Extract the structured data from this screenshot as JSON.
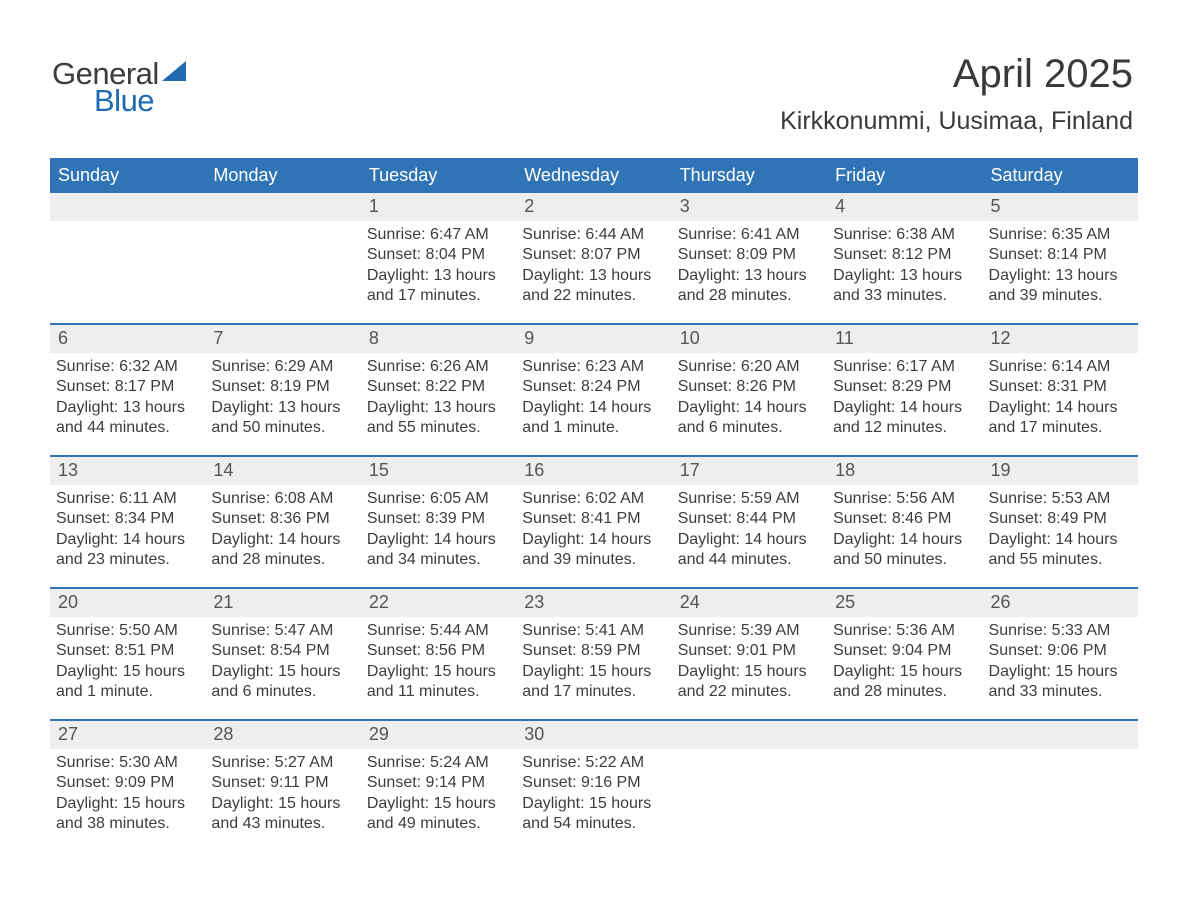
{
  "logo": {
    "word1": "General",
    "word2": "Blue"
  },
  "title": {
    "month": "April 2025",
    "location": "Kirkkonummi, Uusimaa, Finland"
  },
  "colors": {
    "header_bg": "#2f74b5",
    "header_text": "#ffffff",
    "daynum_bg": "#eeeeee",
    "week_border": "#2f74b5",
    "logo_blue": "#1f6ab0",
    "body_text": "#3a3a3a"
  },
  "weekday_labels": [
    "Sunday",
    "Monday",
    "Tuesday",
    "Wednesday",
    "Thursday",
    "Friday",
    "Saturday"
  ],
  "weeks": [
    [
      {
        "num": "",
        "sunrise": "",
        "sunset": "",
        "daylight1": "",
        "daylight2": ""
      },
      {
        "num": "",
        "sunrise": "",
        "sunset": "",
        "daylight1": "",
        "daylight2": ""
      },
      {
        "num": "1",
        "sunrise": "Sunrise: 6:47 AM",
        "sunset": "Sunset: 8:04 PM",
        "daylight1": "Daylight: 13 hours",
        "daylight2": "and 17 minutes."
      },
      {
        "num": "2",
        "sunrise": "Sunrise: 6:44 AM",
        "sunset": "Sunset: 8:07 PM",
        "daylight1": "Daylight: 13 hours",
        "daylight2": "and 22 minutes."
      },
      {
        "num": "3",
        "sunrise": "Sunrise: 6:41 AM",
        "sunset": "Sunset: 8:09 PM",
        "daylight1": "Daylight: 13 hours",
        "daylight2": "and 28 minutes."
      },
      {
        "num": "4",
        "sunrise": "Sunrise: 6:38 AM",
        "sunset": "Sunset: 8:12 PM",
        "daylight1": "Daylight: 13 hours",
        "daylight2": "and 33 minutes."
      },
      {
        "num": "5",
        "sunrise": "Sunrise: 6:35 AM",
        "sunset": "Sunset: 8:14 PM",
        "daylight1": "Daylight: 13 hours",
        "daylight2": "and 39 minutes."
      }
    ],
    [
      {
        "num": "6",
        "sunrise": "Sunrise: 6:32 AM",
        "sunset": "Sunset: 8:17 PM",
        "daylight1": "Daylight: 13 hours",
        "daylight2": "and 44 minutes."
      },
      {
        "num": "7",
        "sunrise": "Sunrise: 6:29 AM",
        "sunset": "Sunset: 8:19 PM",
        "daylight1": "Daylight: 13 hours",
        "daylight2": "and 50 minutes."
      },
      {
        "num": "8",
        "sunrise": "Sunrise: 6:26 AM",
        "sunset": "Sunset: 8:22 PM",
        "daylight1": "Daylight: 13 hours",
        "daylight2": "and 55 minutes."
      },
      {
        "num": "9",
        "sunrise": "Sunrise: 6:23 AM",
        "sunset": "Sunset: 8:24 PM",
        "daylight1": "Daylight: 14 hours",
        "daylight2": "and 1 minute."
      },
      {
        "num": "10",
        "sunrise": "Sunrise: 6:20 AM",
        "sunset": "Sunset: 8:26 PM",
        "daylight1": "Daylight: 14 hours",
        "daylight2": "and 6 minutes."
      },
      {
        "num": "11",
        "sunrise": "Sunrise: 6:17 AM",
        "sunset": "Sunset: 8:29 PM",
        "daylight1": "Daylight: 14 hours",
        "daylight2": "and 12 minutes."
      },
      {
        "num": "12",
        "sunrise": "Sunrise: 6:14 AM",
        "sunset": "Sunset: 8:31 PM",
        "daylight1": "Daylight: 14 hours",
        "daylight2": "and 17 minutes."
      }
    ],
    [
      {
        "num": "13",
        "sunrise": "Sunrise: 6:11 AM",
        "sunset": "Sunset: 8:34 PM",
        "daylight1": "Daylight: 14 hours",
        "daylight2": "and 23 minutes."
      },
      {
        "num": "14",
        "sunrise": "Sunrise: 6:08 AM",
        "sunset": "Sunset: 8:36 PM",
        "daylight1": "Daylight: 14 hours",
        "daylight2": "and 28 minutes."
      },
      {
        "num": "15",
        "sunrise": "Sunrise: 6:05 AM",
        "sunset": "Sunset: 8:39 PM",
        "daylight1": "Daylight: 14 hours",
        "daylight2": "and 34 minutes."
      },
      {
        "num": "16",
        "sunrise": "Sunrise: 6:02 AM",
        "sunset": "Sunset: 8:41 PM",
        "daylight1": "Daylight: 14 hours",
        "daylight2": "and 39 minutes."
      },
      {
        "num": "17",
        "sunrise": "Sunrise: 5:59 AM",
        "sunset": "Sunset: 8:44 PM",
        "daylight1": "Daylight: 14 hours",
        "daylight2": "and 44 minutes."
      },
      {
        "num": "18",
        "sunrise": "Sunrise: 5:56 AM",
        "sunset": "Sunset: 8:46 PM",
        "daylight1": "Daylight: 14 hours",
        "daylight2": "and 50 minutes."
      },
      {
        "num": "19",
        "sunrise": "Sunrise: 5:53 AM",
        "sunset": "Sunset: 8:49 PM",
        "daylight1": "Daylight: 14 hours",
        "daylight2": "and 55 minutes."
      }
    ],
    [
      {
        "num": "20",
        "sunrise": "Sunrise: 5:50 AM",
        "sunset": "Sunset: 8:51 PM",
        "daylight1": "Daylight: 15 hours",
        "daylight2": "and 1 minute."
      },
      {
        "num": "21",
        "sunrise": "Sunrise: 5:47 AM",
        "sunset": "Sunset: 8:54 PM",
        "daylight1": "Daylight: 15 hours",
        "daylight2": "and 6 minutes."
      },
      {
        "num": "22",
        "sunrise": "Sunrise: 5:44 AM",
        "sunset": "Sunset: 8:56 PM",
        "daylight1": "Daylight: 15 hours",
        "daylight2": "and 11 minutes."
      },
      {
        "num": "23",
        "sunrise": "Sunrise: 5:41 AM",
        "sunset": "Sunset: 8:59 PM",
        "daylight1": "Daylight: 15 hours",
        "daylight2": "and 17 minutes."
      },
      {
        "num": "24",
        "sunrise": "Sunrise: 5:39 AM",
        "sunset": "Sunset: 9:01 PM",
        "daylight1": "Daylight: 15 hours",
        "daylight2": "and 22 minutes."
      },
      {
        "num": "25",
        "sunrise": "Sunrise: 5:36 AM",
        "sunset": "Sunset: 9:04 PM",
        "daylight1": "Daylight: 15 hours",
        "daylight2": "and 28 minutes."
      },
      {
        "num": "26",
        "sunrise": "Sunrise: 5:33 AM",
        "sunset": "Sunset: 9:06 PM",
        "daylight1": "Daylight: 15 hours",
        "daylight2": "and 33 minutes."
      }
    ],
    [
      {
        "num": "27",
        "sunrise": "Sunrise: 5:30 AM",
        "sunset": "Sunset: 9:09 PM",
        "daylight1": "Daylight: 15 hours",
        "daylight2": "and 38 minutes."
      },
      {
        "num": "28",
        "sunrise": "Sunrise: 5:27 AM",
        "sunset": "Sunset: 9:11 PM",
        "daylight1": "Daylight: 15 hours",
        "daylight2": "and 43 minutes."
      },
      {
        "num": "29",
        "sunrise": "Sunrise: 5:24 AM",
        "sunset": "Sunset: 9:14 PM",
        "daylight1": "Daylight: 15 hours",
        "daylight2": "and 49 minutes."
      },
      {
        "num": "30",
        "sunrise": "Sunrise: 5:22 AM",
        "sunset": "Sunset: 9:16 PM",
        "daylight1": "Daylight: 15 hours",
        "daylight2": "and 54 minutes."
      },
      {
        "num": "",
        "sunrise": "",
        "sunset": "",
        "daylight1": "",
        "daylight2": ""
      },
      {
        "num": "",
        "sunrise": "",
        "sunset": "",
        "daylight1": "",
        "daylight2": ""
      },
      {
        "num": "",
        "sunrise": "",
        "sunset": "",
        "daylight1": "",
        "daylight2": ""
      }
    ]
  ]
}
